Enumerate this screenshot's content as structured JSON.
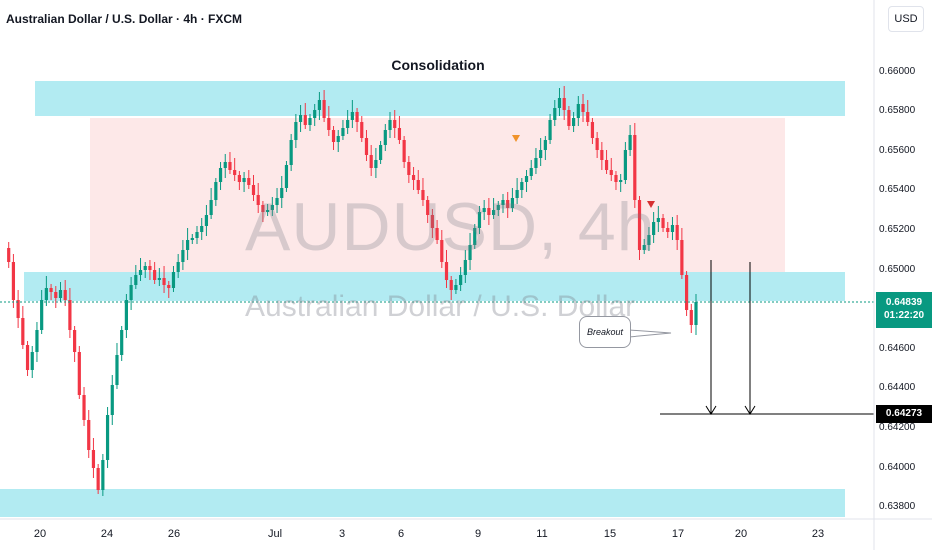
{
  "header": {
    "title": "Australian Dollar / U.S. Dollar · 4h · FXCM",
    "currency": "USD"
  },
  "annotation_title": "Consolidation",
  "watermark": {
    "symbol": "AUDUSD, 4h",
    "name": "Australian Dollar / U.S. Dollar"
  },
  "callout": "Breakout",
  "current_price": {
    "value": "0.64839",
    "countdown": "01:22:20",
    "color": "#089981"
  },
  "target_price": {
    "value": "0.64273"
  },
  "colors": {
    "up": "#089981",
    "down": "#f23645",
    "zone": "#b2ebf2",
    "range": "#fde8e8"
  },
  "chart_data": {
    "type": "candlestick",
    "title": "Consolidation",
    "y_ticks": [
      "0.66000",
      "0.65800",
      "0.65600",
      "0.65400",
      "0.65200",
      "0.65000",
      "0.64600",
      "0.64400",
      "0.64200",
      "0.64000",
      "0.63800"
    ],
    "x_ticks": [
      "20",
      "24",
      "26",
      "Jul",
      "3",
      "6",
      "9",
      "11",
      "15",
      "17",
      "20",
      "23"
    ],
    "ylim": [
      0.6377,
      0.6618
    ],
    "zones": [
      {
        "name": "resistance",
        "from": 0.6577,
        "to": 0.6595
      },
      {
        "name": "support",
        "from": 0.6484,
        "to": 0.6498
      },
      {
        "name": "lower-support",
        "from": 0.6377,
        "to": 0.639
      }
    ],
    "range_box": {
      "from": 0.6502,
      "to": 0.6578
    },
    "target": 0.64273,
    "last": 0.64839
  }
}
